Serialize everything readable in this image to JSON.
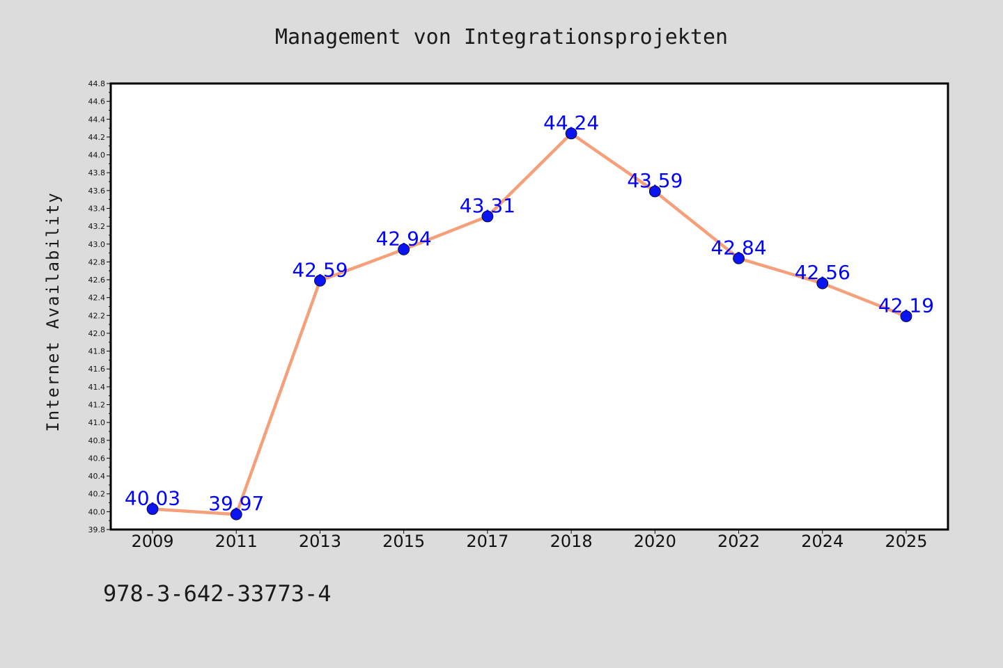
{
  "chart_data": {
    "type": "line",
    "title": "Management von Integrationsprojekten",
    "xlabel": "",
    "ylabel": "Internet Availability",
    "categories": [
      "2009",
      "2011",
      "2013",
      "2015",
      "2017",
      "2018",
      "2020",
      "2022",
      "2024",
      "2025"
    ],
    "series": [
      {
        "values": [
          40.03,
          39.97,
          42.59,
          42.94,
          43.31,
          44.24,
          43.59,
          42.84,
          42.56,
          42.19
        ],
        "data_labels": [
          "40.03",
          "39.97",
          "42.59",
          "42.94",
          "43.31",
          "44.24",
          "43.59",
          "42.84",
          "42.56",
          "42.19"
        ]
      }
    ],
    "ylim": [
      39.8,
      44.8
    ],
    "y_ticks": [
      "39.8",
      "40.0",
      "40.2",
      "40.4",
      "40.6",
      "40.8",
      "41.0",
      "41.2",
      "41.4",
      "41.6",
      "41.8",
      "42.0",
      "42.2",
      "42.4",
      "42.6",
      "42.8",
      "43.0",
      "43.2",
      "43.4",
      "43.6",
      "43.8",
      "44.0",
      "44.2",
      "44.4",
      "44.6",
      "44.8"
    ],
    "grid": false,
    "legend": "none",
    "colors": {
      "line": "#f5a07a",
      "marker": "#0a14f0",
      "label": "#0000ff",
      "plot_background": "#ffffff",
      "page_background": "#dcdcdc"
    }
  },
  "footer": {
    "isbn": "978-3-642-33773-4"
  }
}
